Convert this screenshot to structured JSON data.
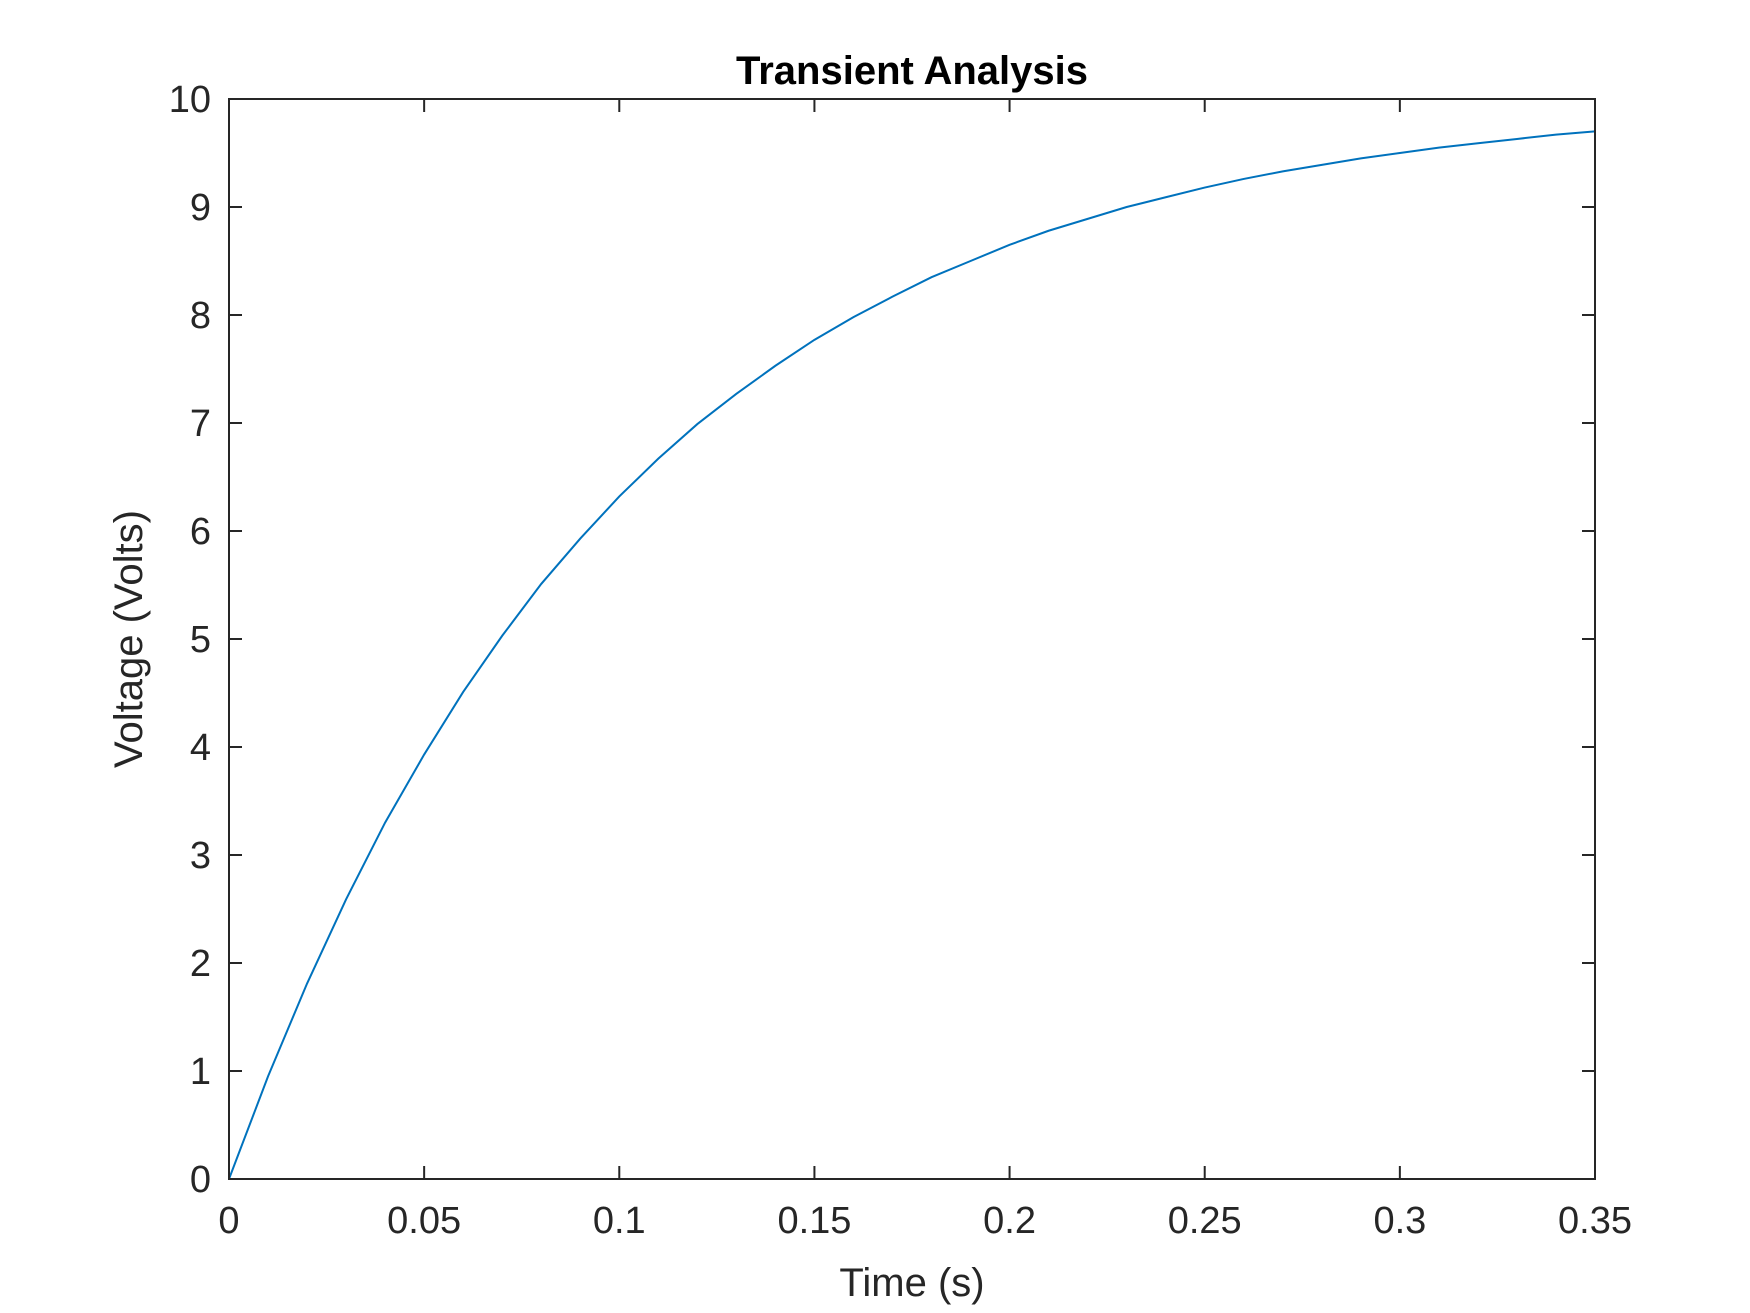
{
  "chart_data": {
    "type": "line",
    "title": "Transient Analysis",
    "xlabel": "Time (s)",
    "ylabel": "Voltage (Volts)",
    "xlim": [
      0,
      0.35
    ],
    "ylim": [
      0,
      10
    ],
    "x_ticks": [
      "0",
      "0.05",
      "0.1",
      "0.15",
      "0.2",
      "0.25",
      "0.3",
      "0.35"
    ],
    "y_ticks": [
      "0",
      "1",
      "2",
      "3",
      "4",
      "5",
      "6",
      "7",
      "8",
      "9",
      "10"
    ],
    "grid": false,
    "colors": {
      "line": "#0072BD",
      "axes": "#262626"
    },
    "series": [
      {
        "x": [
          0,
          0.01,
          0.02,
          0.03,
          0.04,
          0.05,
          0.06,
          0.07,
          0.08,
          0.09,
          0.1,
          0.11,
          0.12,
          0.13,
          0.14,
          0.15,
          0.16,
          0.17,
          0.18,
          0.19,
          0.2,
          0.21,
          0.22,
          0.23,
          0.24,
          0.25,
          0.26,
          0.27,
          0.28,
          0.29,
          0.3,
          0.31,
          0.32,
          0.33,
          0.34,
          0.35
        ],
        "values": [
          0,
          0.95,
          1.81,
          2.59,
          3.3,
          3.93,
          4.51,
          5.03,
          5.51,
          5.93,
          6.32,
          6.67,
          6.99,
          7.27,
          7.53,
          7.77,
          7.98,
          8.17,
          8.35,
          8.5,
          8.65,
          8.78,
          8.89,
          9.0,
          9.09,
          9.18,
          9.26,
          9.33,
          9.39,
          9.45,
          9.5,
          9.55,
          9.59,
          9.63,
          9.67,
          9.7
        ]
      }
    ]
  }
}
